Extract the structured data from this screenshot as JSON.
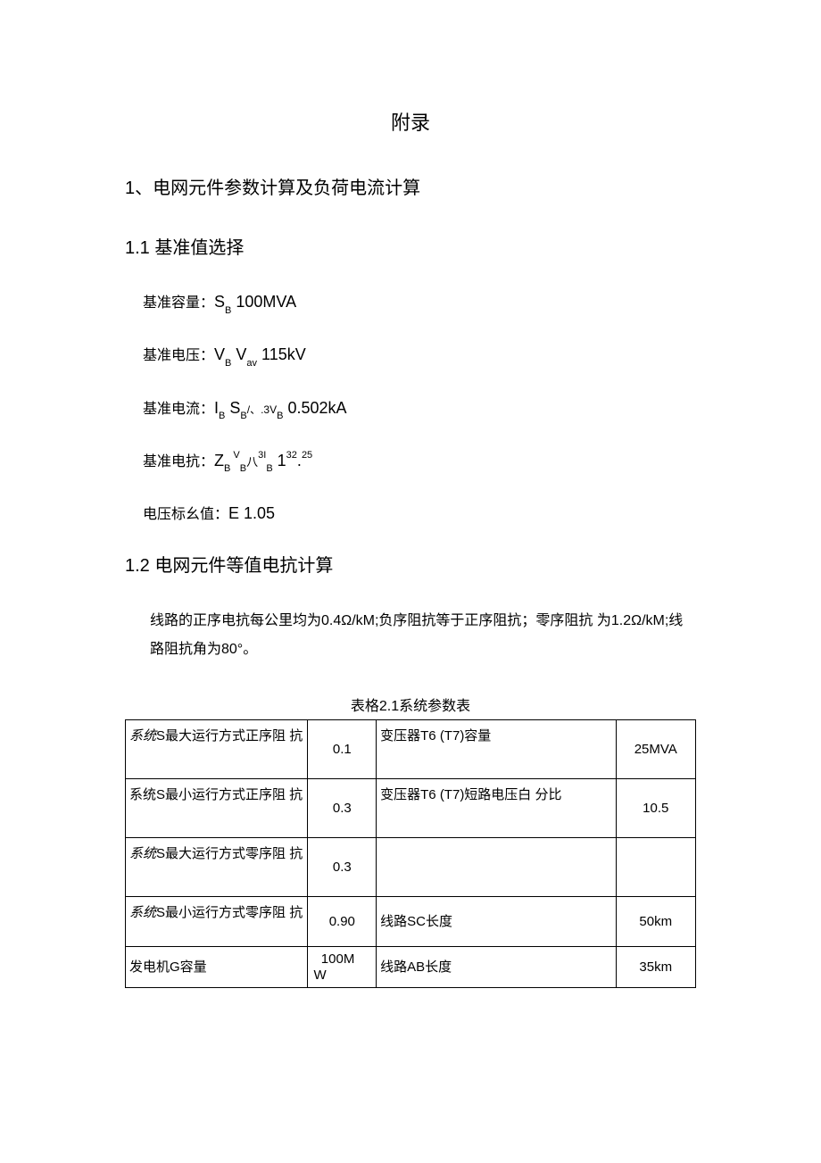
{
  "title": "附录",
  "section1": {
    "heading": "1、电网元件参数计算及负荷电流计算",
    "sub1": {
      "heading": "1.1  基准值选择",
      "lines": {
        "capacity_label": "基准容量：",
        "capacity_sym_pre": "S",
        "capacity_sym_sub": "B",
        "capacity_val": " 100MVA",
        "voltage_label": "基准电压：",
        "voltage_sym1_pre": "V",
        "voltage_sym1_sub": "B",
        "voltage_sym2_pre": " V",
        "voltage_sym2_sub": "av",
        "voltage_val": " 115kV",
        "current_label": "基准电流：",
        "current_sym_pre": "I",
        "current_sym_sub": "B",
        "current_sym2_pre": " S",
        "current_sym2_sub": "B",
        "current_mid": "/、.3V",
        "current_sym3_sub": "B",
        "current_val": " 0.502kA",
        "impedance_label": "基准电抗：",
        "impedance_sym_pre": "Z",
        "impedance_sym_sub": "B",
        "impedance_sym2a": " V",
        "impedance_sym2a_sub": "B",
        "impedance_mid": "八",
        "impedance_sym2b_sup": "3I",
        "impedance_sym2b_sub": "B",
        "impedance_val_pre": " 1",
        "impedance_val_sup": "32",
        "impedance_val_dot": ".",
        "impedance_val_post": "25",
        "pu_label": "电压标幺值：",
        "pu_sym": "E",
        "pu_val": " 1.05"
      }
    },
    "sub2": {
      "heading": " 1.2  电网元件等值电抗计算",
      "body": "线路的正序电抗每公里均为0.4Ω/kM;负序阻抗等于正序阻抗；零序阻抗 为1.2Ω/kM;线路阻抗角为80°。"
    }
  },
  "table": {
    "caption": "表格2.1系统参数表",
    "columns": {
      "col1_width_pct": 32,
      "col2_width_pct": 12,
      "col3_width_pct": 42,
      "col4_width_pct": 14
    },
    "rows": [
      {
        "c1_prefix": "系统",
        "c1_rest": "S最大运行方式正序阻  抗",
        "c2": "0.1",
        "c3": "变压器T6 (T7)容量",
        "c4": "25MVA",
        "c1_italic": true,
        "height": "tall"
      },
      {
        "c1_prefix": "",
        "c1_rest": "系统S最小运行方式正序阻  抗",
        "c2": "0.3",
        "c3": "变压器T6 (T7)短路电压白 分比",
        "c4": "10.5",
        "c1_italic": false,
        "height": "tall"
      },
      {
        "c1_prefix": "系统",
        "c1_rest": "S最大运行方式零序阻  抗",
        "c2": "0.3",
        "c3": "",
        "c4": "",
        "c1_italic": true,
        "height": "tall"
      },
      {
        "c1_prefix": "系统",
        "c1_rest": "S最小运行方式零序阻  抗",
        "c2": "0.90",
        "c3": "线路SC长度",
        "c4": "50km",
        "c1_italic": true,
        "height": "med"
      },
      {
        "c1_prefix": "",
        "c1_rest": "发电机G容量",
        "c2": "100MW",
        "c3": "线路AB长度",
        "c4": "35km",
        "c1_italic": false,
        "height": "short"
      }
    ]
  }
}
